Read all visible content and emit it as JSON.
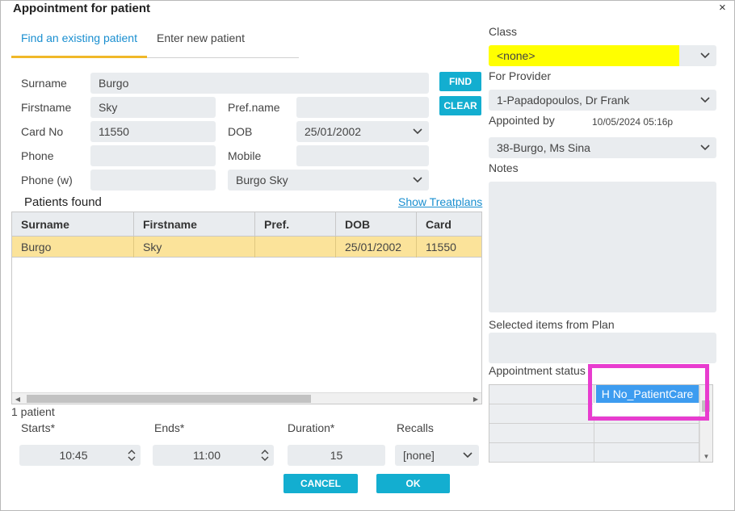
{
  "window": {
    "title": "Appointment for patient",
    "close_glyph": "×"
  },
  "tabs": [
    {
      "label": "Find an existing patient",
      "active": true
    },
    {
      "label": "Enter new patient",
      "active": false
    }
  ],
  "form": {
    "surname_label": "Surname",
    "surname_value": "Burgo",
    "firstname_label": "Firstname",
    "firstname_value": "Sky",
    "prefname_label": "Pref.name",
    "prefname_value": "",
    "cardno_label": "Card No",
    "cardno_value": "11550",
    "dob_label": "DOB",
    "dob_value": "25/01/2002",
    "phone_label": "Phone",
    "phone_value": "",
    "mobile_label": "Mobile",
    "mobile_value": "",
    "phonew_label": "Phone (w)",
    "phonew_value": "",
    "patient_select_value": "Burgo Sky"
  },
  "buttons": {
    "find": "FIND",
    "clear": "CLEAR",
    "cancel": "CANCEL",
    "ok": "OK"
  },
  "patients": {
    "title": "Patients found",
    "show_treatplans": "Show Treatplans",
    "columns": [
      "Surname",
      "Firstname",
      "Pref.",
      "DOB",
      "Card"
    ],
    "rows": [
      {
        "surname": "Burgo",
        "firstname": "Sky",
        "pref": "",
        "dob": "25/01/2002",
        "card": "11550"
      }
    ],
    "count_text": "1 patient"
  },
  "timing": {
    "starts_label": "Starts*",
    "starts_value": "10:45",
    "ends_label": "Ends*",
    "ends_value": "11:00",
    "duration_label": "Duration*",
    "duration_value": "15",
    "recalls_label": "Recalls",
    "recalls_value": "[none]"
  },
  "right": {
    "class_label": "Class",
    "class_value": "<none>",
    "class_highlight": "#ffff00",
    "provider_label": "For Provider",
    "provider_value": "1-Papadopoulos, Dr Frank",
    "appointed_label": "Appointed by",
    "appointed_datetime": "10/05/2024 05:16p",
    "appointed_value": "38-Burgo, Ms Sina",
    "notes_label": "Notes",
    "selected_label": "Selected items from Plan",
    "status_label": "Appointment status",
    "status_tag": "H No_PatientCare"
  },
  "colors": {
    "accent": "#1a8fd0",
    "button": "#13aed0",
    "row_selected": "#fbe39a",
    "highlight_box": "#e83ccf",
    "tag": "#3d9cf0",
    "tab_underline": "#f0b829"
  }
}
